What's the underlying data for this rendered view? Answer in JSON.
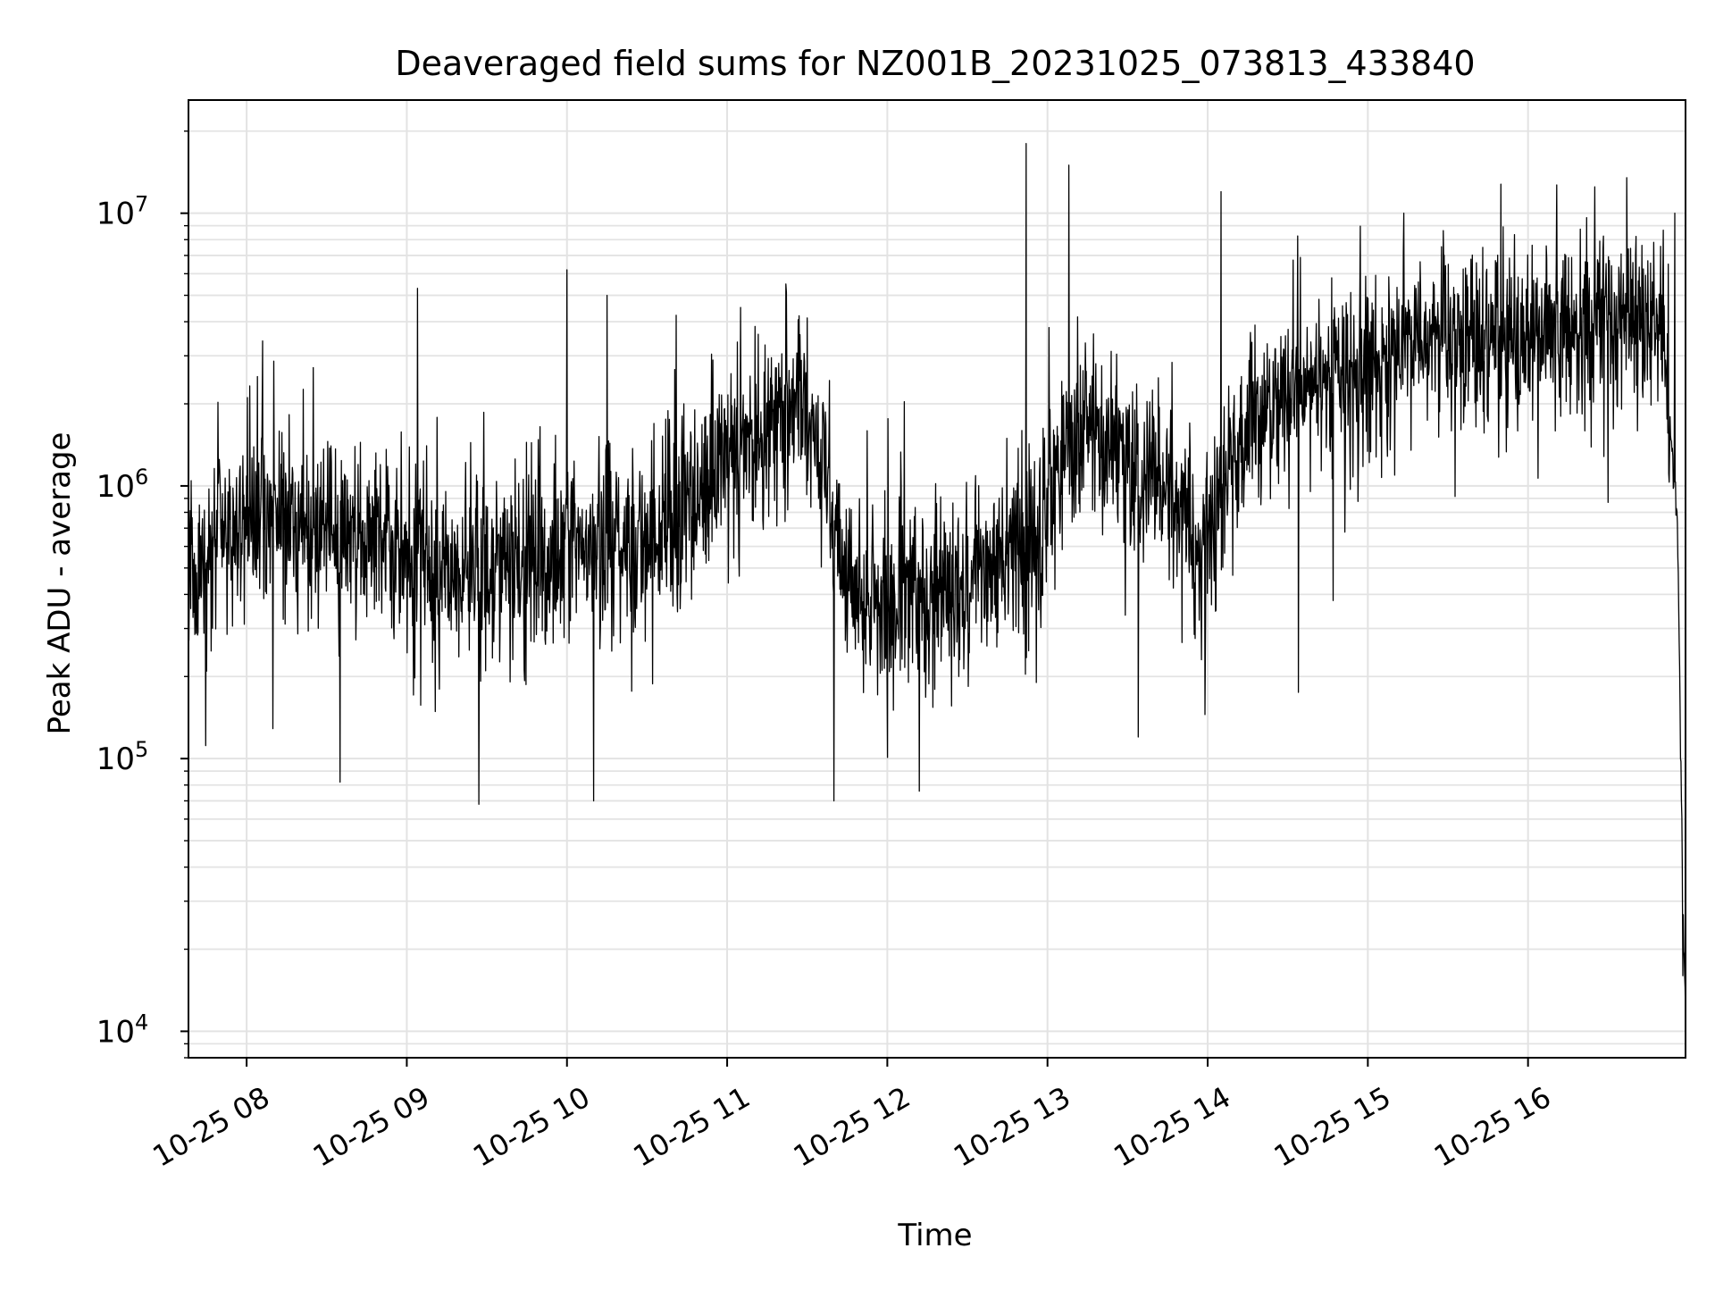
{
  "chart_data": {
    "type": "line",
    "title": "Deaveraged field sums for NZ001B_20231025_073813_433840",
    "xlabel": "Time",
    "ylabel": "Peak ADU - average",
    "yscale": "log",
    "ylim": [
      8000,
      26000000
    ],
    "xlim": [
      "2023-10-25 07:38:13",
      "2023-10-25 16:59:00"
    ],
    "grid": true,
    "line_color": "#000000",
    "x_ticks": [
      "10-25 08",
      "10-25 09",
      "10-25 10",
      "10-25 11",
      "10-25 12",
      "10-25 13",
      "10-25 14",
      "10-25 15",
      "10-25 16"
    ],
    "y_ticks": [
      {
        "value": 10000,
        "base": "10",
        "exp": "4"
      },
      {
        "value": 100000,
        "base": "10",
        "exp": "5"
      },
      {
        "value": 1000000,
        "base": "10",
        "exp": "6"
      },
      {
        "value": 10000000,
        "base": "10",
        "exp": "7"
      }
    ],
    "series": [
      {
        "values_trend": {
          "x": [
            "2023-10-25 07:38",
            "2023-10-25 08:00",
            "2023-10-25 08:30",
            "2023-10-25 09:00",
            "2023-10-25 09:30",
            "2023-10-25 10:00",
            "2023-10-25 10:30",
            "2023-10-25 11:00",
            "2023-10-25 11:30",
            "2023-10-25 11:45",
            "2023-10-25 12:00",
            "2023-10-25 12:30",
            "2023-10-25 12:55",
            "2023-10-25 13:15",
            "2023-10-25 13:30",
            "2023-10-25 14:00",
            "2023-10-25 14:15",
            "2023-10-25 14:30",
            "2023-10-25 15:00",
            "2023-10-25 15:30",
            "2023-10-25 16:00",
            "2023-10-25 16:30",
            "2023-10-25 16:50",
            "2023-10-25 16:56",
            "2023-10-25 16:58",
            "2023-10-25 16:59"
          ],
          "y": [
            450000,
            800000,
            700000,
            550000,
            500000,
            550000,
            600000,
            1300000,
            2000000,
            450000,
            350000,
            450000,
            600000,
            2000000,
            1200000,
            700000,
            1500000,
            2200000,
            2800000,
            3500000,
            3500000,
            4000000,
            4200000,
            700000,
            30000,
            12000
          ]
        },
        "peaks": {
          "x": [
            "2023-10-25 08:06",
            "2023-10-25 09:04",
            "2023-10-25 10:00",
            "2023-10-25 10:15",
            "2023-10-25 11:22",
            "2023-10-25 12:52",
            "2023-10-25 13:08",
            "2023-10-25 14:05",
            "2023-10-25 16:25",
            "2023-10-25 16:37",
            "2023-10-25 16:55"
          ],
          "y": [
            3400000,
            5300000,
            6200000,
            5000000,
            5500000,
            18000000,
            15000000,
            12000000,
            12500000,
            13500000,
            10000000
          ]
        },
        "troughs": {
          "x": [
            "2023-10-25 08:35",
            "2023-10-25 09:27",
            "2023-10-25 10:10",
            "2023-10-25 11:40",
            "2023-10-25 12:12",
            "2023-10-25 13:34",
            "2023-10-25 13:59",
            "2023-10-25 14:34",
            "2023-10-25 14:47",
            "2023-10-25 16:30",
            "2023-10-25 16:59"
          ],
          "y": [
            82000,
            68000,
            70000,
            70000,
            76000,
            120000,
            145000,
            175000,
            380000,
            870000,
            11000
          ]
        }
      }
    ]
  }
}
